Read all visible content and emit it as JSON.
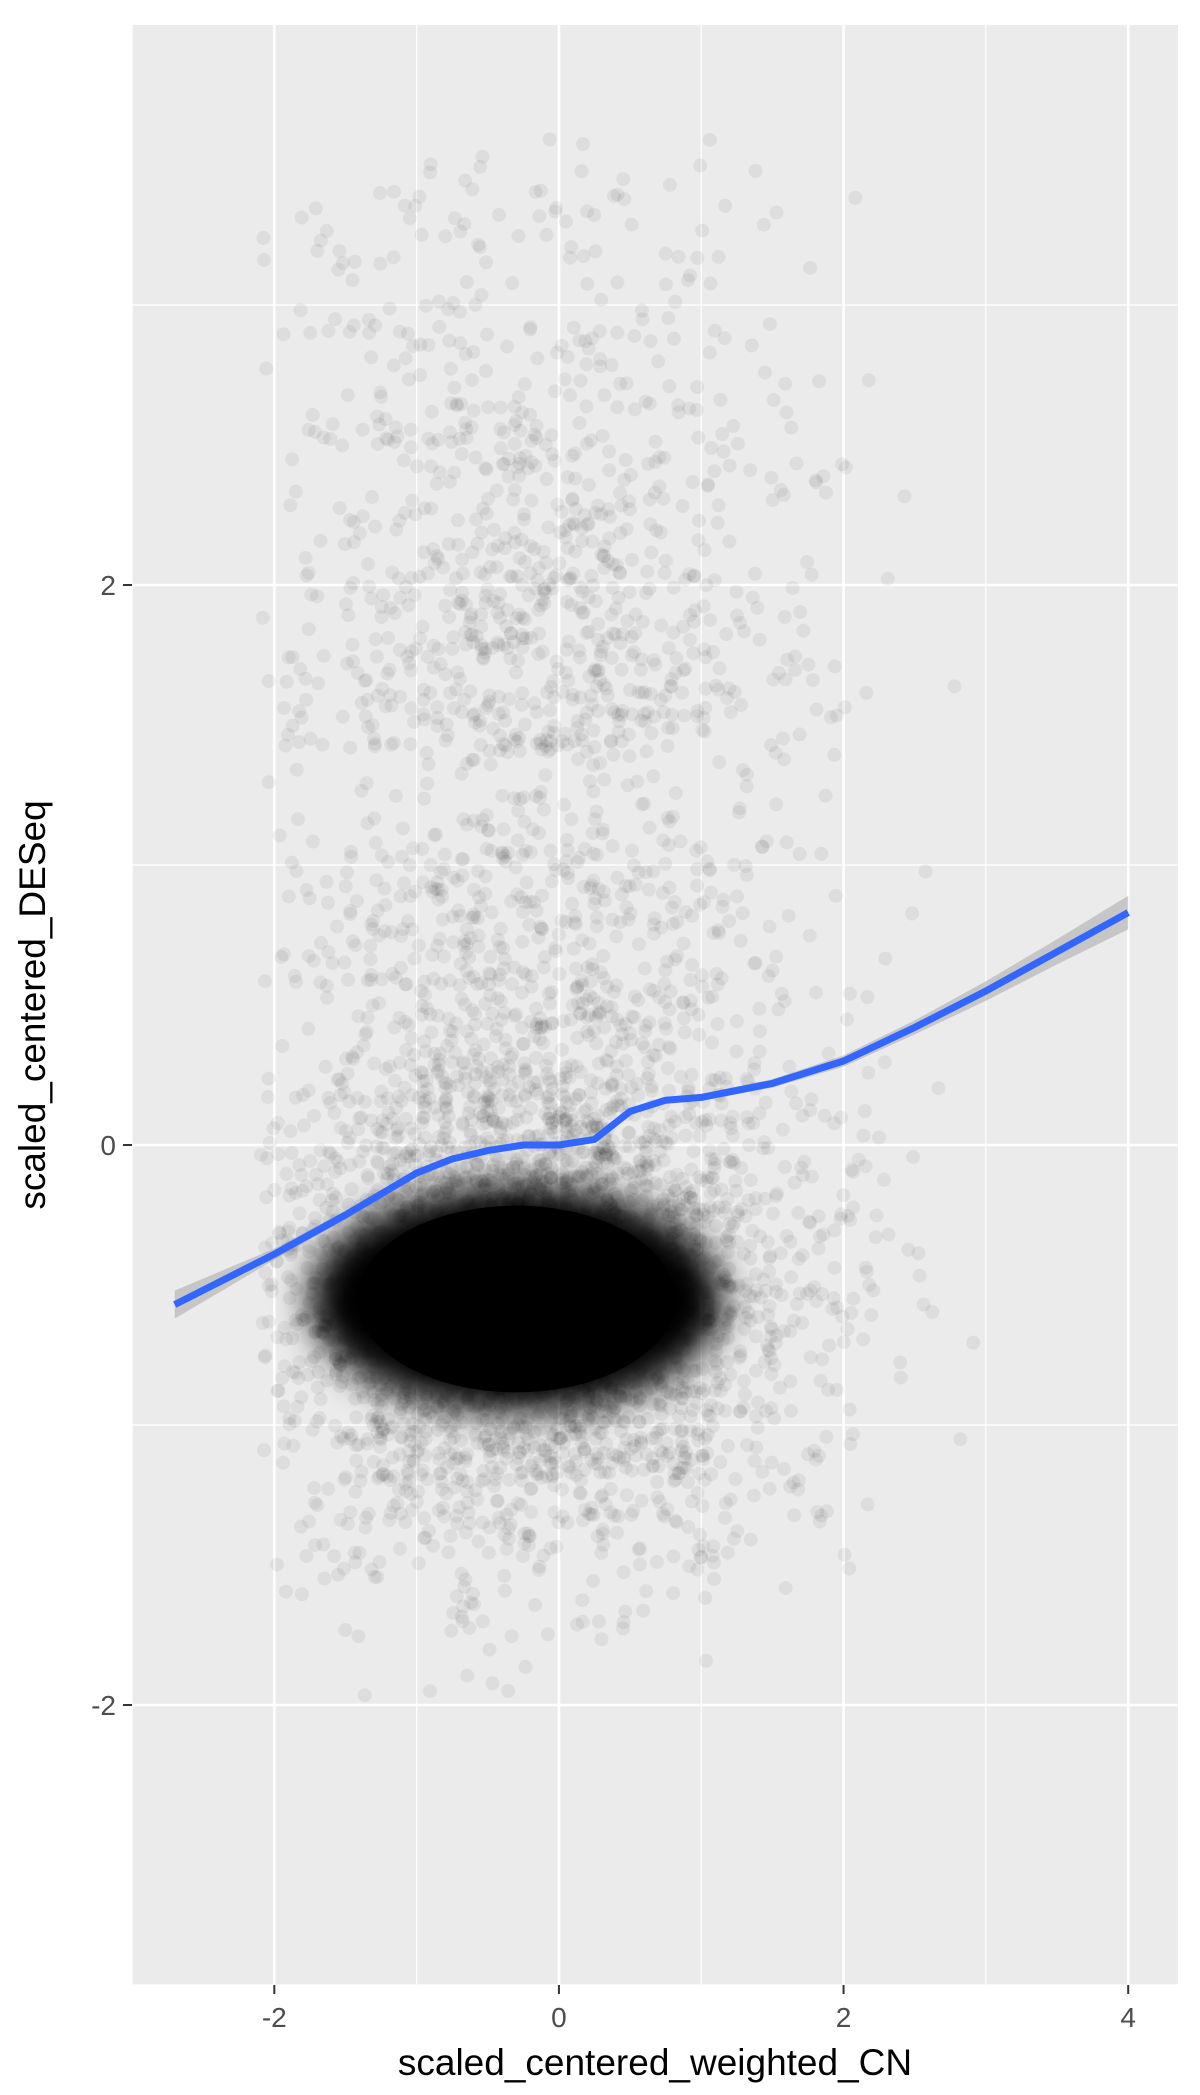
{
  "chart_data": {
    "type": "scatter",
    "xlabel": "scaled_centered_weighted_CN",
    "ylabel": "scaled_centered_DESeq",
    "xlim": [
      -3.0,
      4.35
    ],
    "ylim": [
      -3.0,
      4.0
    ],
    "x_ticks": [
      -2,
      0,
      2,
      4
    ],
    "x_tick_labels": [
      "-2",
      "0",
      "2",
      "4"
    ],
    "y_ticks": [
      -2,
      0,
      2
    ],
    "y_tick_labels": [
      "-2",
      "0",
      "2"
    ],
    "grid": true,
    "legend": "none",
    "point_color": "#000000",
    "point_alpha": 0.02,
    "density_core": {
      "x_range": [
        -1.8,
        1.1
      ],
      "y_range": [
        -1.0,
        -0.2
      ],
      "center": [
        -0.3,
        -0.55
      ]
    },
    "point_cloud_extent": {
      "x_range": [
        -2.1,
        3.1
      ],
      "y_range": [
        -2.0,
        3.6
      ]
    },
    "smooth": {
      "method": "loess",
      "color": "#3366FF",
      "ci_fill": "#999999",
      "x": [
        -2.7,
        -2.0,
        -1.5,
        -1.0,
        -0.75,
        -0.5,
        -0.25,
        0.0,
        0.25,
        0.5,
        0.75,
        1.0,
        1.5,
        2.0,
        2.5,
        3.0,
        3.5,
        4.0
      ],
      "y": [
        -0.57,
        -0.39,
        -0.25,
        -0.1,
        -0.05,
        -0.02,
        0.0,
        0.0,
        0.02,
        0.12,
        0.16,
        0.17,
        0.22,
        0.3,
        0.42,
        0.55,
        0.69,
        0.83
      ],
      "ci_halfwidth": [
        0.05,
        0.02,
        0.015,
        0.012,
        0.01,
        0.01,
        0.01,
        0.01,
        0.01,
        0.01,
        0.01,
        0.012,
        0.015,
        0.02,
        0.025,
        0.035,
        0.045,
        0.06
      ]
    }
  }
}
